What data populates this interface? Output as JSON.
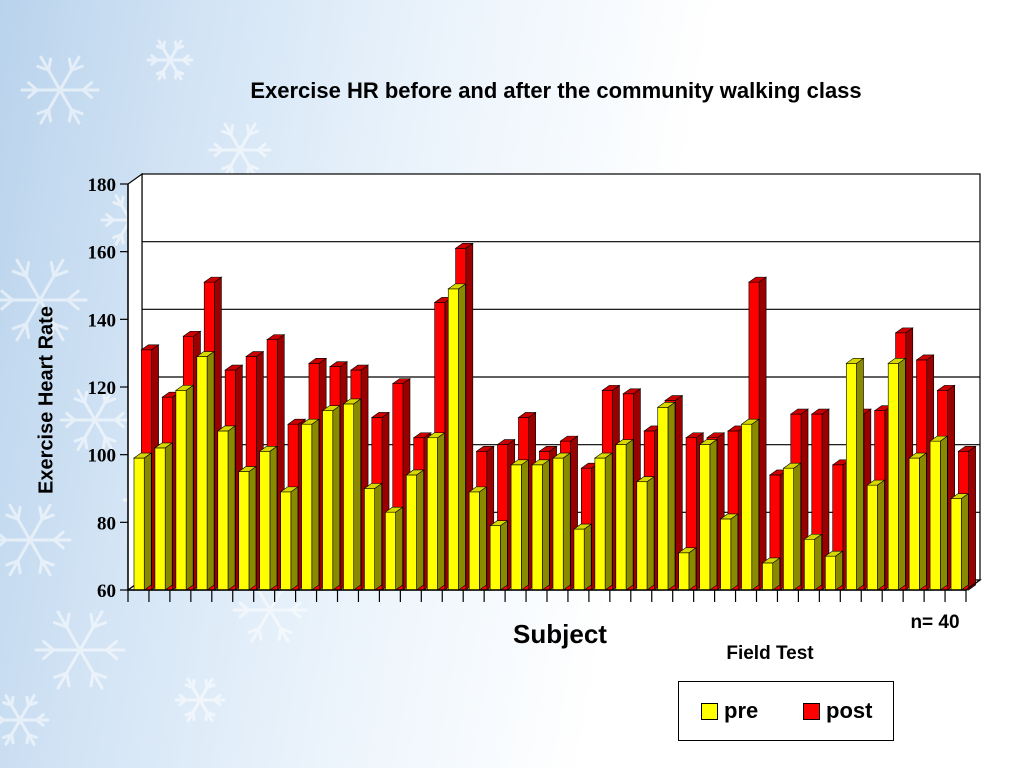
{
  "chart_data": {
    "type": "bar",
    "title": "Exercise HR before and after the community walking class",
    "xlabel": "Subject",
    "ylabel": "Exercise Heart Rate",
    "subtitle": "Field Test",
    "note": "n= 40",
    "ylim": [
      60,
      180
    ],
    "yticks": [
      60,
      80,
      100,
      120,
      140,
      160,
      180
    ],
    "grid": true,
    "legend_position": "bottom-right",
    "series": [
      {
        "name": "pre",
        "color": "#ffff00",
        "values": [
          99,
          102,
          119,
          129,
          107,
          95,
          101,
          89,
          109,
          113,
          115,
          90,
          83,
          94,
          105,
          149,
          89,
          79,
          97,
          97,
          99,
          78,
          99,
          103,
          92,
          114,
          71,
          103,
          81,
          109,
          68,
          96,
          75,
          70,
          127,
          91,
          127,
          99,
          104,
          87
        ]
      },
      {
        "name": "post",
        "color": "#ff0000",
        "values": [
          131,
          117,
          135,
          151,
          125,
          129,
          134,
          109,
          127,
          126,
          125,
          111,
          121,
          105,
          145,
          161,
          101,
          103,
          111,
          101,
          104,
          96,
          119,
          118,
          107,
          116,
          105,
          105,
          107,
          151,
          94,
          112,
          112,
          97,
          112,
          113,
          136,
          128,
          119,
          101
        ]
      }
    ]
  }
}
